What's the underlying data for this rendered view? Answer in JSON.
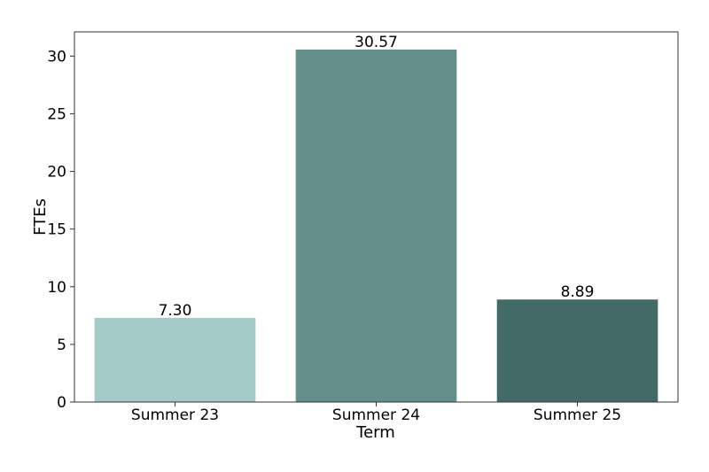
{
  "chart_data": {
    "type": "bar",
    "categories": [
      "Summer 23",
      "Summer 24",
      "Summer 25"
    ],
    "values": [
      7.3,
      30.57,
      8.89
    ],
    "data_labels": [
      "7.30",
      "30.57",
      "8.89"
    ],
    "colors": [
      "#a3cbc8",
      "#648f8b",
      "#426a66"
    ],
    "xlabel": "Term",
    "ylabel": "FTEs",
    "ylim": [
      0,
      32.1
    ],
    "yticks": [
      "0",
      "5",
      "10",
      "15",
      "20",
      "25",
      "30"
    ],
    "grid": false
  }
}
